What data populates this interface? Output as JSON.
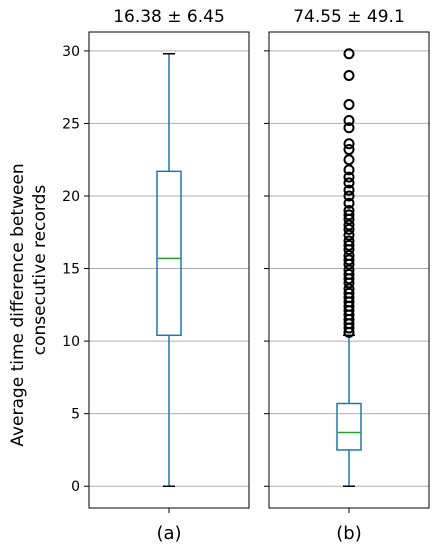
{
  "chart_data": {
    "type": "box",
    "ylabel_lines": [
      "Average time difference between",
      "consecutive records"
    ],
    "panels": [
      {
        "title": "16.38 ± 6.45",
        "category": "(a)",
        "ylim": [
          -1.5,
          31.3
        ],
        "yticks": [
          0,
          5,
          10,
          15,
          20,
          25,
          30
        ],
        "show_tick_labels": true,
        "grid": true,
        "box": {
          "min": 0,
          "q1": 10.4,
          "median": 15.7,
          "q3": 21.7,
          "max": 29.8
        },
        "outliers": []
      },
      {
        "title": "74.55 ± 49.1",
        "category": "(b)",
        "ylim": [
          -1.5,
          31.3
        ],
        "yticks": [
          0,
          5,
          10,
          15,
          20,
          25,
          30
        ],
        "show_tick_labels": false,
        "grid": true,
        "box": {
          "min": 0,
          "q1": 2.5,
          "median": 3.7,
          "q3": 5.7,
          "max": 10.4
        },
        "outliers": [
          10.6,
          10.9,
          11.2,
          11.5,
          11.8,
          12.1,
          12.4,
          12.7,
          13.0,
          13.3,
          13.6,
          14.0,
          14.3,
          14.6,
          14.9,
          15.3,
          15.6,
          15.9,
          16.3,
          16.6,
          16.9,
          17.3,
          17.7,
          18.0,
          18.4,
          18.7,
          19.0,
          19.5,
          20.0,
          20.4,
          20.9,
          21.3,
          21.8,
          22.5,
          23.2,
          23.6,
          24.7,
          25.2,
          26.3,
          28.3,
          29.8
        ]
      }
    ]
  },
  "colors": {
    "box": "#1f77b4",
    "median": "#2ca02c",
    "grid": "#b0b0b0",
    "axis": "#000000",
    "cap": "#000000",
    "outlier": "#000000"
  }
}
